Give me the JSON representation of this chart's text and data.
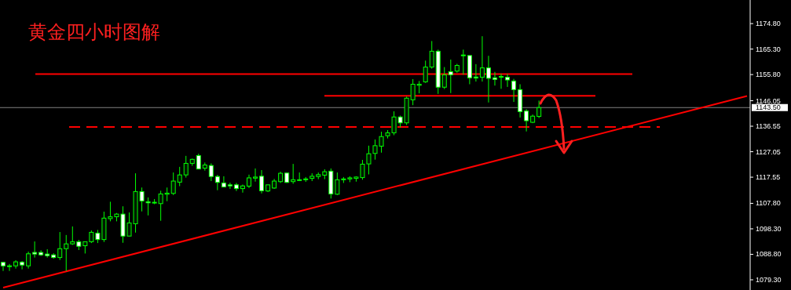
{
  "chart_data": {
    "type": "candlestick",
    "title": "黄金四小时图解",
    "categories": [
      null,
      null,
      null,
      null,
      null,
      null,
      null,
      null,
      null,
      null,
      null,
      null,
      null,
      null,
      null,
      null,
      null,
      null,
      null,
      null,
      null,
      null,
      null,
      null,
      null,
      null,
      null,
      null,
      null,
      null,
      null,
      null,
      null,
      null,
      null,
      null,
      null,
      null,
      null,
      null,
      null,
      null,
      null,
      null,
      null,
      null,
      null,
      null,
      null,
      null,
      null,
      null,
      null,
      null,
      null,
      null,
      null,
      null,
      null,
      null,
      null,
      null,
      null,
      null,
      null,
      null,
      null,
      null,
      null,
      null,
      null,
      null,
      null,
      null,
      null,
      null,
      null,
      null,
      null,
      null,
      null,
      null,
      null,
      null,
      null,
      null,
      null,
      null,
      null,
      null,
      null,
      null,
      null,
      null,
      null,
      null,
      null,
      null,
      null,
      null,
      null,
      null,
      null,
      null,
      null,
      null,
      null,
      null,
      null,
      null,
      null,
      null,
      null,
      null,
      null,
      null,
      null,
      null,
      null
    ],
    "ohlc": [
      [
        1085.8,
        1086.0,
        1082.6,
        1084.5
      ],
      [
        1084.2,
        1085.2,
        1082.6,
        1084.5
      ],
      [
        1084.5,
        1086.6,
        1083.5,
        1086.0
      ],
      [
        1085.9,
        1086.3,
        1083.2,
        1084.8
      ],
      [
        1084.5,
        1089.8,
        1083.5,
        1089.0
      ],
      [
        1089.5,
        1093.6,
        1087.6,
        1088.9
      ],
      [
        1089.5,
        1090.3,
        1088.2,
        1088.6
      ],
      [
        1088.9,
        1090.7,
        1087.6,
        1088.3
      ],
      [
        1088.6,
        1089.2,
        1087.2,
        1087.6
      ],
      [
        1087.6,
        1097.1,
        1086.7,
        1090.9
      ],
      [
        1090.9,
        1096.0,
        1082.6,
        1092.7
      ],
      [
        1092.7,
        1099.2,
        1092.3,
        1093.5
      ],
      [
        1093.5,
        1094.2,
        1090.4,
        1091.8
      ],
      [
        1092.0,
        1093.5,
        1089.1,
        1093.5
      ],
      [
        1093.5,
        1097.7,
        1093.0,
        1097.0
      ],
      [
        1096.7,
        1097.9,
        1093.0,
        1094.3
      ],
      [
        1094.3,
        1104.7,
        1093.4,
        1102.3
      ],
      [
        1102.1,
        1108.4,
        1101.1,
        1102.8
      ],
      [
        1102.8,
        1104.2,
        1101.1,
        1103.8
      ],
      [
        1103.8,
        1106.7,
        1093.1,
        1095.6
      ],
      [
        1095.6,
        1104.4,
        1095.6,
        1100.5
      ],
      [
        1100.2,
        1119.0,
        1096.9,
        1112.2
      ],
      [
        1112.2,
        1113.7,
        1104.8,
        1108.7
      ],
      [
        1108.4,
        1110.0,
        1103.3,
        1108.0
      ],
      [
        1108.0,
        1109.4,
        1107.5,
        1108.2
      ],
      [
        1107.7,
        1112.5,
        1101.3,
        1111.3
      ],
      [
        1111.2,
        1113.7,
        1108.6,
        1111.6
      ],
      [
        1111.5,
        1119.3,
        1110.9,
        1116.1
      ],
      [
        1115.7,
        1121.4,
        1114.2,
        1118.4
      ],
      [
        1118.4,
        1125.5,
        1117.4,
        1122.7
      ],
      [
        1122.7,
        1124.5,
        1121.8,
        1124.2
      ],
      [
        1125.6,
        1126.3,
        1120.6,
        1120.6
      ],
      [
        1120.9,
        1123.0,
        1120.0,
        1122.1
      ],
      [
        1121.9,
        1122.7,
        1116.1,
        1117.8
      ],
      [
        1117.8,
        1118.4,
        1112.7,
        1115.6
      ],
      [
        1115.4,
        1117.9,
        1113.8,
        1113.9
      ],
      [
        1114.7,
        1115.5,
        1113.2,
        1114.3
      ],
      [
        1114.7,
        1115.4,
        1112.4,
        1113.3
      ],
      [
        1113.3,
        1114.8,
        1111.8,
        1114.3
      ],
      [
        1114.2,
        1118.5,
        1113.5,
        1117.3
      ],
      [
        1117.2,
        1120.8,
        1115.9,
        1117.6
      ],
      [
        1117.9,
        1120.2,
        1111.5,
        1112.5
      ],
      [
        1112.4,
        1114.7,
        1112.0,
        1114.7
      ],
      [
        1113.5,
        1116.9,
        1113.2,
        1116.1
      ],
      [
        1115.9,
        1119.6,
        1115.4,
        1119.0
      ],
      [
        1119.1,
        1119.3,
        1115.4,
        1115.6
      ],
      [
        1115.9,
        1122.5,
        1115.1,
        1116.6
      ],
      [
        1116.4,
        1119.3,
        1116.1,
        1116.6
      ],
      [
        1116.6,
        1117.6,
        1115.8,
        1116.9
      ],
      [
        1117.1,
        1119.0,
        1116.1,
        1117.9
      ],
      [
        1117.8,
        1119.3,
        1116.8,
        1118.5
      ],
      [
        1118.3,
        1120.5,
        1116.8,
        1119.6
      ],
      [
        1119.8,
        1120.8,
        1109.6,
        1111.3
      ],
      [
        1111.2,
        1119.3,
        1110.9,
        1116.6
      ],
      [
        1116.6,
        1117.6,
        1115.4,
        1116.9
      ],
      [
        1116.9,
        1117.9,
        1115.7,
        1117.3
      ],
      [
        1117.1,
        1117.9,
        1115.9,
        1117.6
      ],
      [
        1117.4,
        1124.0,
        1116.6,
        1122.4
      ],
      [
        1122.5,
        1129.3,
        1118.6,
        1126.3
      ],
      [
        1126.4,
        1131.6,
        1124.1,
        1129.3
      ],
      [
        1129.1,
        1134.5,
        1126.7,
        1132.7
      ],
      [
        1133.0,
        1135.1,
        1132.0,
        1134.1
      ],
      [
        1134.1,
        1142.1,
        1133.2,
        1140.0
      ],
      [
        1140.0,
        1140.5,
        1136.1,
        1137.8
      ],
      [
        1137.8,
        1147.6,
        1137.0,
        1147.0
      ],
      [
        1146.4,
        1154.1,
        1144.4,
        1152.2
      ],
      [
        1151.8,
        1153.4,
        1148.8,
        1152.2
      ],
      [
        1153.1,
        1161.0,
        1152.7,
        1158.6
      ],
      [
        1158.6,
        1168.3,
        1158.0,
        1164.5
      ],
      [
        1164.5,
        1165.1,
        1148.6,
        1151.1
      ],
      [
        1151.1,
        1158.6,
        1150.4,
        1155.7
      ],
      [
        1156.9,
        1161.4,
        1148.9,
        1155.7
      ],
      [
        1157.1,
        1159.8,
        1156.5,
        1159.2
      ],
      [
        1162.9,
        1165.1,
        1155.8,
        1163.1
      ],
      [
        1162.9,
        1162.9,
        1152.2,
        1154.6
      ],
      [
        1154.9,
        1159.7,
        1153.2,
        1154.5
      ],
      [
        1154.8,
        1170.1,
        1153.2,
        1158.3
      ],
      [
        1158.3,
        1162.8,
        1145.4,
        1154.4
      ],
      [
        1154.6,
        1156.8,
        1151.7,
        1154.0
      ],
      [
        1154.9,
        1156.1,
        1150.5,
        1155.1
      ],
      [
        1154.8,
        1156.0,
        1151.2,
        1153.8
      ],
      [
        1153.4,
        1154.2,
        1145.6,
        1150.2
      ],
      [
        1150.2,
        1152.2,
        1139.8,
        1142.0
      ],
      [
        1142.2,
        1142.9,
        1134.6,
        1138.6
      ],
      [
        1138.0,
        1140.9,
        1137.7,
        1140.3
      ],
      [
        1140.2,
        1146.1,
        1139.6,
        1143.5
      ],
      null,
      null,
      null,
      null,
      null,
      null,
      null,
      null,
      null,
      null,
      null,
      null,
      null,
      null,
      null,
      null,
      null,
      null,
      null,
      null,
      null,
      null,
      null,
      null,
      null,
      null,
      null,
      null,
      null,
      null,
      null,
      null,
      null
    ],
    "series": [
      {
        "type": "line",
        "values": [
          1076.4,
          null,
          null,
          null,
          null,
          null,
          null,
          null,
          null,
          null,
          null,
          null,
          null,
          null,
          null,
          null,
          null,
          null,
          null,
          null,
          null,
          null,
          null,
          null,
          null,
          null,
          null,
          null,
          null,
          null,
          null,
          null,
          null,
          null,
          null,
          null,
          null,
          null,
          null,
          null,
          null,
          null,
          null,
          null,
          null,
          null,
          null,
          null,
          null,
          null,
          null,
          null,
          null,
          null,
          null,
          null,
          null,
          null,
          null,
          null,
          null,
          null,
          null,
          null,
          null,
          null,
          null,
          null,
          null,
          null,
          null,
          null,
          null,
          null,
          null,
          null,
          null,
          null,
          null,
          null,
          null,
          null,
          null,
          null,
          null,
          null,
          null,
          null,
          null,
          null,
          null,
          null,
          null,
          null,
          null,
          null,
          null,
          null,
          null,
          null,
          null,
          null,
          null,
          null,
          null,
          null,
          null,
          null,
          null,
          null,
          null,
          null,
          null,
          null,
          null,
          null,
          null,
          null,
          1147.8
        ],
        "color": "#ff0000"
      }
    ],
    "ylim": [
      1075.5,
      1183.6
    ],
    "yticks": [
      {
        "value": 1174.8,
        "label": "1174.80"
      },
      {
        "value": 1165.3,
        "label": "1165.30"
      },
      {
        "value": 1155.8,
        "label": "1155.80"
      },
      {
        "value": 1146.05,
        "label": "1146.05"
      },
      {
        "value": 1136.55,
        "label": "1136.55"
      },
      {
        "value": 1127.05,
        "label": "1127.05"
      },
      {
        "value": 1117.55,
        "label": "1117.55"
      },
      {
        "value": 1107.8,
        "label": "1107.80"
      },
      {
        "value": 1098.3,
        "label": "1098.30"
      },
      {
        "value": 1088.8,
        "label": "1088.80"
      },
      {
        "value": 1079.3,
        "label": "1079.30"
      }
    ],
    "tick_labels": "y",
    "ref_lines": [
      {
        "axis": "y",
        "value": 1156.0,
        "color": "#ff0000"
      },
      {
        "axis": "y",
        "value": 1147.9,
        "color": "#ff0000"
      },
      {
        "axis": "y",
        "value": 1136.3,
        "color": "#ff0000",
        "line_style": "dashed"
      },
      {
        "axis": "y",
        "value": 1143.5,
        "label": "1143.50",
        "color": "#808080"
      }
    ]
  }
}
